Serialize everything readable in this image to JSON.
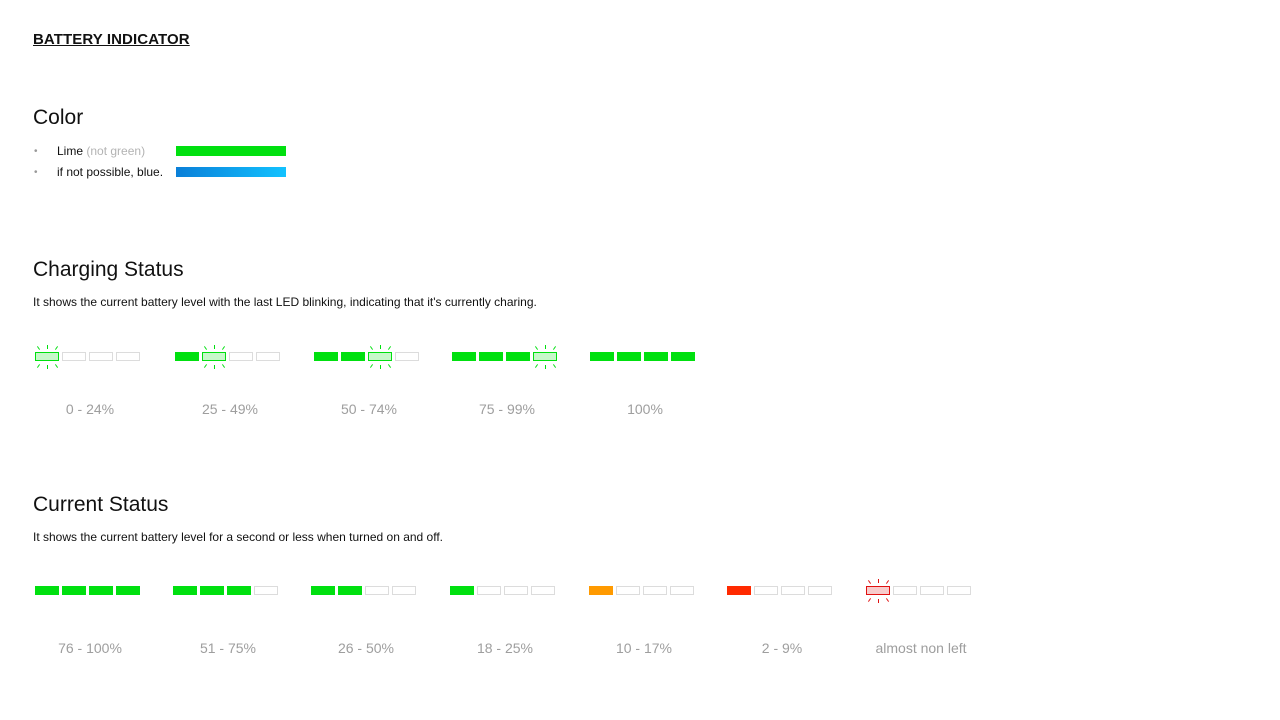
{
  "title": "BATTERY INDICATOR",
  "color_section": {
    "heading": "Color",
    "items": [
      {
        "label": "Lime",
        "note": "(not green)",
        "swatch": "linear-gradient(90deg,#00e00f,#00e00f)"
      },
      {
        "label": "if not possible, blue.",
        "note": "",
        "swatch": "linear-gradient(90deg,#0a7fd8,#12c2ff)"
      }
    ]
  },
  "charging": {
    "heading": "Charging Status",
    "description": "It shows the current battery level with the last LED blinking, indicating that it's currently charing.",
    "indicators": [
      {
        "range": "0 - 24%",
        "segments": [
          "blink",
          "empty",
          "empty",
          "empty"
        ],
        "color": "#00e00f"
      },
      {
        "range": "25 - 49%",
        "segments": [
          "full",
          "blink",
          "empty",
          "empty"
        ],
        "color": "#00e00f"
      },
      {
        "range": "50 - 74%",
        "segments": [
          "full",
          "full",
          "blink",
          "empty"
        ],
        "color": "#00e00f"
      },
      {
        "range": "75 - 99%",
        "segments": [
          "full",
          "full",
          "full",
          "blink"
        ],
        "color": "#00e00f"
      },
      {
        "range": "100%",
        "segments": [
          "full",
          "full",
          "full",
          "full"
        ],
        "color": "#00e00f"
      }
    ]
  },
  "current": {
    "heading": "Current Status",
    "description": "It shows the current battery level for a second or less when turned on and off.",
    "indicators": [
      {
        "range": "76 - 100%",
        "segments": [
          "full",
          "full",
          "full",
          "full"
        ],
        "color": "#00e00f"
      },
      {
        "range": "51 - 75%",
        "segments": [
          "full",
          "full",
          "full",
          "empty"
        ],
        "color": "#00e00f"
      },
      {
        "range": "26 - 50%",
        "segments": [
          "full",
          "full",
          "empty",
          "empty"
        ],
        "color": "#00e00f"
      },
      {
        "range": "18 - 25%",
        "segments": [
          "full",
          "empty",
          "empty",
          "empty"
        ],
        "color": "#00e00f"
      },
      {
        "range": "10 - 17%",
        "segments": [
          "full",
          "empty",
          "empty",
          "empty"
        ],
        "color": "#ff9a00"
      },
      {
        "range": "2 - 9%",
        "segments": [
          "full",
          "empty",
          "empty",
          "empty"
        ],
        "color": "#ff2a00"
      },
      {
        "range": "almost non left",
        "segments": [
          "blink",
          "empty",
          "empty",
          "empty"
        ],
        "color": "#e01010"
      }
    ]
  }
}
